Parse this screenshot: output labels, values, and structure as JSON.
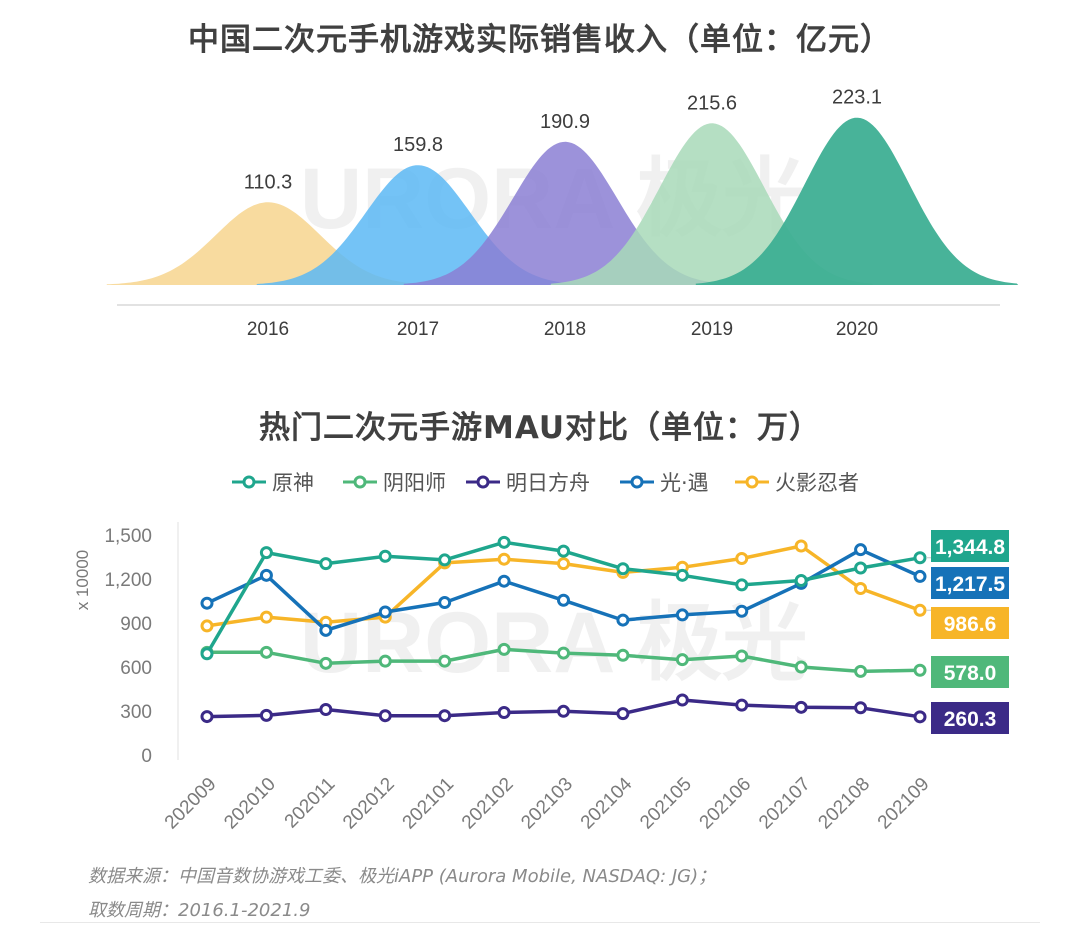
{
  "chart_data": [
    {
      "type": "area",
      "title": "中国二次元手机游戏实际销售收入（单位：亿元）",
      "categories": [
        "2016",
        "2017",
        "2018",
        "2019",
        "2020"
      ],
      "values": [
        110.3,
        159.8,
        190.9,
        215.6,
        223.1
      ],
      "value_labels": [
        "110.3",
        "159.8",
        "190.9",
        "215.6",
        "223.1"
      ],
      "colors": [
        "#f7d58e",
        "#5cb8f5",
        "#8b7fd4",
        "#a8d9b9",
        "#3eaf94"
      ],
      "grid": false,
      "legend": "none"
    },
    {
      "type": "line",
      "title": "热门二次元手游MAU对比（单位：万）",
      "ylabel": "x 10000",
      "ylim": [
        0,
        1500
      ],
      "yticks": [
        0,
        300,
        600,
        900,
        1200,
        1500
      ],
      "ytick_labels": [
        "0",
        "300",
        "600",
        "900",
        "1,200",
        "1,500"
      ],
      "categories": [
        "202009",
        "202010",
        "202011",
        "202012",
        "202101",
        "202102",
        "202103",
        "202104",
        "202105",
        "202106",
        "202107",
        "202108",
        "202109"
      ],
      "legend": "top",
      "grid": false,
      "series": [
        {
          "name": "原神",
          "color": "#1fa68d",
          "values": [
            690,
            1380,
            1305,
            1355,
            1330,
            1450,
            1390,
            1270,
            1225,
            1160,
            1190,
            1275,
            1344.8
          ],
          "end_label": "1,344.8"
        },
        {
          "name": "阴阳师",
          "color": "#4fb87a",
          "values": [
            700,
            700,
            625,
            640,
            640,
            720,
            695,
            680,
            650,
            675,
            600,
            570,
            578.0
          ],
          "end_label": "578.0"
        },
        {
          "name": "明日方舟",
          "color": "#3b2a87",
          "values": [
            262,
            270,
            310,
            268,
            268,
            290,
            298,
            282,
            375,
            340,
            325,
            322,
            260.3
          ],
          "end_label": "260.3"
        },
        {
          "name": "光·遇",
          "color": "#1672b8",
          "values": [
            1035,
            1225,
            850,
            975,
            1040,
            1185,
            1055,
            920,
            955,
            980,
            1170,
            1400,
            1217.5
          ],
          "end_label": "1,217.5"
        },
        {
          "name": "火影忍者",
          "color": "#f7b528",
          "values": [
            880,
            940,
            905,
            940,
            1310,
            1335,
            1305,
            1245,
            1280,
            1340,
            1425,
            1135,
            986.6
          ],
          "end_label": "986.6"
        }
      ]
    }
  ],
  "watermark": "URORA 极光",
  "source": {
    "line1": "数据来源：中国音数协游戏工委、极光iAPP (Aurora Mobile, NASDAQ: JG)；",
    "line2": "取数周期：2016.1-2021.9"
  }
}
